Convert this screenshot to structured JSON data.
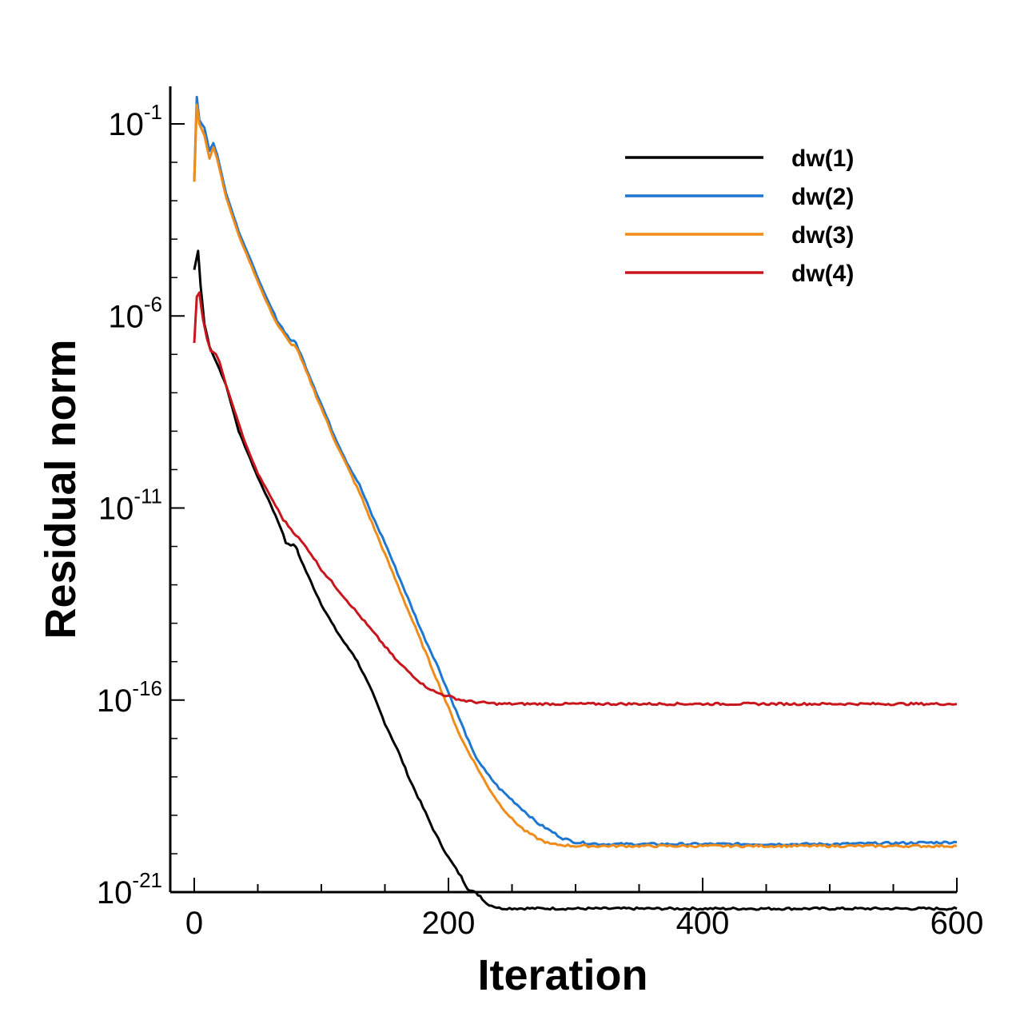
{
  "chart_data": {
    "type": "line",
    "title": "",
    "xlabel": "Iteration",
    "ylabel": "Residual norm",
    "xlim": [
      -5,
      600
    ],
    "ylim_log10": [
      -21,
      0.4
    ],
    "xscale": "linear",
    "yscale": "log",
    "x_ticks": [
      {
        "value": 0,
        "label": "0"
      },
      {
        "value": 200,
        "label": "200"
      },
      {
        "value": 400,
        "label": "400"
      },
      {
        "value": 600,
        "label": "600"
      }
    ],
    "y_ticks": [
      {
        "log10": -1,
        "base": "10",
        "exp": "-1"
      },
      {
        "log10": -6,
        "base": "10",
        "exp": "-6"
      },
      {
        "log10": -11,
        "base": "10",
        "exp": "-11"
      },
      {
        "log10": -16,
        "base": "10",
        "exp": "-16"
      },
      {
        "log10": -21,
        "base": "10",
        "exp": "-21"
      }
    ],
    "legend_position": "top-right",
    "series": [
      {
        "name": "dw(1)",
        "color": "#000000",
        "points": [
          [
            0,
            -4.8
          ],
          [
            3,
            -4.3
          ],
          [
            5,
            -5.2
          ],
          [
            8,
            -6.2
          ],
          [
            12,
            -6.8
          ],
          [
            16,
            -7.1
          ],
          [
            20,
            -7.4
          ],
          [
            25,
            -7.8
          ],
          [
            30,
            -8.4
          ],
          [
            35,
            -9.0
          ],
          [
            40,
            -9.4
          ],
          [
            50,
            -10.2
          ],
          [
            60,
            -10.9
          ],
          [
            68,
            -11.5
          ],
          [
            72,
            -11.9
          ],
          [
            80,
            -12.0
          ],
          [
            82,
            -12.2
          ],
          [
            90,
            -12.8
          ],
          [
            100,
            -13.5
          ],
          [
            110,
            -14.1
          ],
          [
            120,
            -14.6
          ],
          [
            125,
            -14.8
          ],
          [
            130,
            -15.1
          ],
          [
            140,
            -15.8
          ],
          [
            150,
            -16.6
          ],
          [
            160,
            -17.3
          ],
          [
            170,
            -18.1
          ],
          [
            180,
            -18.8
          ],
          [
            190,
            -19.5
          ],
          [
            200,
            -20.1
          ],
          [
            210,
            -20.6
          ],
          [
            215,
            -20.9
          ],
          [
            220,
            -21.0
          ],
          [
            225,
            -21.1
          ],
          [
            230,
            -21.3
          ],
          [
            240,
            -21.42
          ],
          [
            300,
            -21.43
          ],
          [
            400,
            -21.43
          ],
          [
            500,
            -21.43
          ],
          [
            600,
            -21.43
          ]
        ]
      },
      {
        "name": "dw(2)",
        "color": "#1f77d0",
        "points": [
          [
            0,
            -2.5
          ],
          [
            2,
            -0.3
          ],
          [
            4,
            -0.9
          ],
          [
            8,
            -1.1
          ],
          [
            12,
            -1.7
          ],
          [
            15,
            -1.5
          ],
          [
            18,
            -1.8
          ],
          [
            25,
            -2.8
          ],
          [
            35,
            -3.8
          ],
          [
            45,
            -4.6
          ],
          [
            55,
            -5.4
          ],
          [
            65,
            -6.1
          ],
          [
            75,
            -6.6
          ],
          [
            80,
            -6.7
          ],
          [
            90,
            -7.5
          ],
          [
            100,
            -8.3
          ],
          [
            110,
            -9.1
          ],
          [
            120,
            -9.8
          ],
          [
            130,
            -10.4
          ],
          [
            140,
            -11.2
          ],
          [
            150,
            -11.9
          ],
          [
            160,
            -12.7
          ],
          [
            170,
            -13.5
          ],
          [
            180,
            -14.3
          ],
          [
            190,
            -15.0
          ],
          [
            200,
            -15.8
          ],
          [
            210,
            -16.6
          ],
          [
            220,
            -17.4
          ],
          [
            230,
            -17.9
          ],
          [
            240,
            -18.3
          ],
          [
            250,
            -18.6
          ],
          [
            260,
            -18.9
          ],
          [
            270,
            -19.2
          ],
          [
            280,
            -19.4
          ],
          [
            290,
            -19.6
          ],
          [
            300,
            -19.7
          ],
          [
            320,
            -19.75
          ],
          [
            400,
            -19.75
          ],
          [
            500,
            -19.75
          ],
          [
            600,
            -19.7
          ]
        ]
      },
      {
        "name": "dw(3)",
        "color": "#f08c1a",
        "points": [
          [
            0,
            -2.5
          ],
          [
            2,
            -0.5
          ],
          [
            4,
            -1.0
          ],
          [
            8,
            -1.3
          ],
          [
            12,
            -1.9
          ],
          [
            15,
            -1.6
          ],
          [
            18,
            -1.9
          ],
          [
            25,
            -2.9
          ],
          [
            35,
            -3.9
          ],
          [
            45,
            -4.7
          ],
          [
            55,
            -5.5
          ],
          [
            65,
            -6.2
          ],
          [
            75,
            -6.7
          ],
          [
            80,
            -6.8
          ],
          [
            90,
            -7.6
          ],
          [
            100,
            -8.4
          ],
          [
            110,
            -9.2
          ],
          [
            120,
            -9.9
          ],
          [
            130,
            -10.6
          ],
          [
            140,
            -11.4
          ],
          [
            150,
            -12.2
          ],
          [
            160,
            -13.0
          ],
          [
            170,
            -13.8
          ],
          [
            180,
            -14.6
          ],
          [
            190,
            -15.4
          ],
          [
            200,
            -16.2
          ],
          [
            210,
            -17.0
          ],
          [
            220,
            -17.6
          ],
          [
            230,
            -18.2
          ],
          [
            240,
            -18.7
          ],
          [
            250,
            -19.1
          ],
          [
            260,
            -19.4
          ],
          [
            270,
            -19.6
          ],
          [
            280,
            -19.75
          ],
          [
            300,
            -19.8
          ],
          [
            400,
            -19.8
          ],
          [
            500,
            -19.8
          ],
          [
            600,
            -19.8
          ]
        ]
      },
      {
        "name": "dw(4)",
        "color": "#c8161d",
        "points": [
          [
            0,
            -6.7
          ],
          [
            2,
            -5.5
          ],
          [
            4,
            -5.4
          ],
          [
            7,
            -6.1
          ],
          [
            10,
            -6.6
          ],
          [
            13,
            -6.9
          ],
          [
            17,
            -7.0
          ],
          [
            20,
            -7.2
          ],
          [
            25,
            -7.8
          ],
          [
            30,
            -8.3
          ],
          [
            35,
            -8.8
          ],
          [
            40,
            -9.3
          ],
          [
            50,
            -10.1
          ],
          [
            60,
            -10.7
          ],
          [
            70,
            -11.3
          ],
          [
            80,
            -11.7
          ],
          [
            90,
            -12.1
          ],
          [
            100,
            -12.6
          ],
          [
            110,
            -13.0
          ],
          [
            120,
            -13.4
          ],
          [
            130,
            -13.8
          ],
          [
            140,
            -14.2
          ],
          [
            150,
            -14.6
          ],
          [
            160,
            -15.0
          ],
          [
            170,
            -15.3
          ],
          [
            180,
            -15.6
          ],
          [
            190,
            -15.8
          ],
          [
            200,
            -15.9
          ],
          [
            210,
            -16.0
          ],
          [
            220,
            -16.05
          ],
          [
            240,
            -16.1
          ],
          [
            300,
            -16.1
          ],
          [
            400,
            -16.1
          ],
          [
            500,
            -16.1
          ],
          [
            600,
            -16.1
          ]
        ]
      }
    ]
  }
}
